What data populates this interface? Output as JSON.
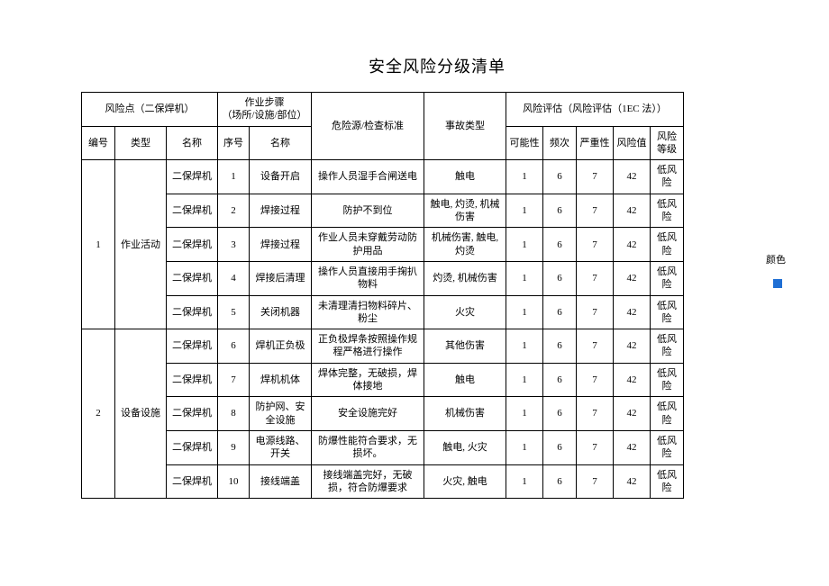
{
  "title": "安全风险分级清单",
  "side_label": "颜色",
  "side_color": "#1f6fd4",
  "header": {
    "risk_point": "风险点（二保焊机）",
    "procedure": "作业步骤\n（场所/设施/部位）",
    "hazard": "危险源/检查标准",
    "accident": "事故类型",
    "evaluation": "风险评估（风险评估（1EC 法））",
    "sub": {
      "id": "编号",
      "type": "类型",
      "name": "名称",
      "seq": "序号",
      "step_name": "名称",
      "possibility": "可能性",
      "frequency": "频次",
      "severity": "严重性",
      "risk_value": "风险值",
      "risk_grade": "风险\n等级"
    }
  },
  "groups": [
    {
      "id": "1",
      "type": "作业活动",
      "rows": [
        {
          "name": "二保焊机",
          "seq": "1",
          "step": "设备开启",
          "hazard": "操作人员湿手合闸送电",
          "accident": "触电",
          "p": "1",
          "f": "6",
          "s": "7",
          "v": "42",
          "grade": "低风险"
        },
        {
          "name": "二保焊机",
          "seq": "2",
          "step": "焊接过程",
          "hazard": "防护不到位",
          "accident": "触电, 灼烫, 机械伤害",
          "p": "1",
          "f": "6",
          "s": "7",
          "v": "42",
          "grade": "低风险"
        },
        {
          "name": "二保焊机",
          "seq": "3",
          "step": "焊接过程",
          "hazard": "作业人员未穿戴劳动防护用品",
          "accident": "机械伤害, 触电, 灼烫",
          "p": "1",
          "f": "6",
          "s": "7",
          "v": "42",
          "grade": "低风险"
        },
        {
          "name": "二保焊机",
          "seq": "4",
          "step": "焊接后清理",
          "hazard": "操作人员直接用手掬扒物料",
          "accident": "灼烫, 机械伤害",
          "p": "1",
          "f": "6",
          "s": "7",
          "v": "42",
          "grade": "低风险"
        },
        {
          "name": "二保焊机",
          "seq": "5",
          "step": "关闭机器",
          "hazard": "未清理清扫物料碎片、粉尘",
          "accident": "火灾",
          "p": "1",
          "f": "6",
          "s": "7",
          "v": "42",
          "grade": "低风险"
        }
      ]
    },
    {
      "id": "2",
      "type": "设备设施",
      "rows": [
        {
          "name": "二保焊机",
          "seq": "6",
          "step": "焊机正负极",
          "hazard": "正负极焊条按照操作规程严格进行操作",
          "accident": "其他伤害",
          "p": "1",
          "f": "6",
          "s": "7",
          "v": "42",
          "grade": "低风险"
        },
        {
          "name": "二保焊机",
          "seq": "7",
          "step": "焊机机体",
          "hazard": "焊体完整，无破损，焊体接地",
          "accident": "触电",
          "p": "1",
          "f": "6",
          "s": "7",
          "v": "42",
          "grade": "低风险"
        },
        {
          "name": "二保焊机",
          "seq": "8",
          "step": "防护网、安全设施",
          "hazard": "安全设施完好",
          "accident": "机械伤害",
          "p": "1",
          "f": "6",
          "s": "7",
          "v": "42",
          "grade": "低风险"
        },
        {
          "name": "二保焊机",
          "seq": "9",
          "step": "电源线路、开关",
          "hazard": "防爆性能符合要求，无损坏。",
          "accident": "触电, 火灾",
          "p": "1",
          "f": "6",
          "s": "7",
          "v": "42",
          "grade": "低风险"
        },
        {
          "name": "二保焊机",
          "seq": "10",
          "step": "接线端盖",
          "hazard": "接线端盖完好，无破损，符合防爆要求",
          "accident": "火灾, 触电",
          "p": "1",
          "f": "6",
          "s": "7",
          "v": "42",
          "grade": "低风险"
        }
      ]
    }
  ]
}
